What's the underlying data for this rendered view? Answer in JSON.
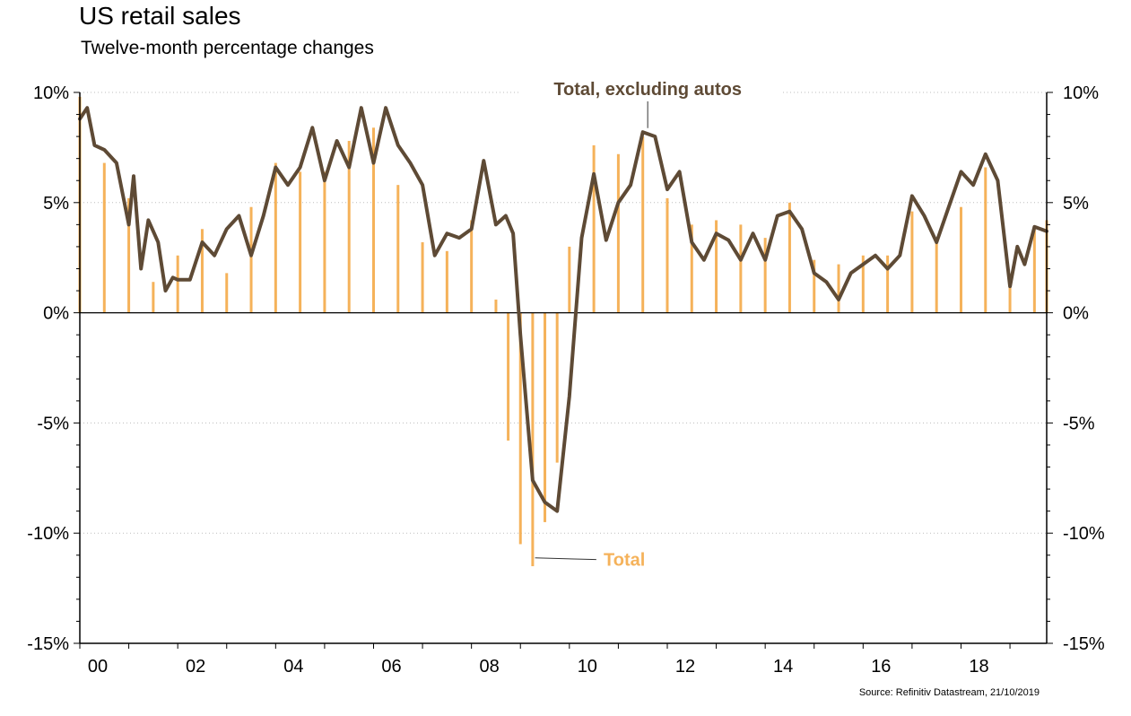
{
  "chart_data": {
    "type": "bar+line",
    "title": "US retail sales",
    "subtitle": "Twelve-month percentage changes",
    "source": "Source: Refinitiv Datastream, 21/10/2019",
    "x_tick_labels": [
      "00",
      "02",
      "04",
      "06",
      "08",
      "10",
      "12",
      "14",
      "16",
      "18"
    ],
    "x_tick_years": [
      2000,
      2002,
      2004,
      2006,
      2008,
      2010,
      2012,
      2014,
      2016,
      2018
    ],
    "xlim": [
      2000.0,
      2019.75
    ],
    "ylim": [
      -15,
      10
    ],
    "y_ticks": [
      10,
      5,
      0,
      -5,
      -10,
      -15
    ],
    "y_tick_labels": [
      "10%",
      "5%",
      "0%",
      "-5%",
      "-10%",
      "-15%"
    ],
    "grid": "horizontal dotted",
    "colors": {
      "total": "#F5B25A",
      "excl_autos": "#5E4A35",
      "grid": "#bdbdbd"
    },
    "series": [
      {
        "name": "Total",
        "render": "bars",
        "color": "#F5B25A",
        "x": [
          2000.0,
          2000.5,
          2001.0,
          2001.5,
          2002.0,
          2002.5,
          2003.0,
          2003.5,
          2004.0,
          2004.5,
          2005.0,
          2005.5,
          2006.0,
          2006.5,
          2007.0,
          2007.5,
          2008.0,
          2008.5,
          2008.75,
          2009.0,
          2009.25,
          2009.5,
          2009.75,
          2010.0,
          2010.5,
          2011.0,
          2011.5,
          2012.0,
          2012.5,
          2013.0,
          2013.5,
          2014.0,
          2014.5,
          2015.0,
          2015.5,
          2016.0,
          2016.5,
          2017.0,
          2017.5,
          2018.0,
          2018.5,
          2019.0,
          2019.5,
          2019.75
        ],
        "values": [
          9.8,
          6.8,
          5.2,
          1.4,
          2.6,
          3.8,
          1.8,
          4.8,
          6.8,
          6.4,
          6.4,
          7.8,
          8.4,
          5.8,
          3.2,
          2.8,
          4.2,
          0.6,
          -5.8,
          -10.5,
          -11.5,
          -9.5,
          -6.8,
          3.0,
          7.6,
          7.2,
          8.0,
          5.2,
          4.0,
          4.2,
          4.0,
          3.4,
          5.0,
          2.4,
          2.2,
          2.6,
          2.6,
          4.6,
          3.4,
          4.8,
          6.6,
          1.4,
          3.8,
          4.2
        ]
      },
      {
        "name": "Total, excluding autos",
        "render": "line",
        "color": "#5E4A35",
        "x": [
          2000.0,
          2000.15,
          2000.3,
          2000.5,
          2000.75,
          2001.0,
          2001.1,
          2001.25,
          2001.4,
          2001.6,
          2001.75,
          2001.9,
          2002.0,
          2002.25,
          2002.5,
          2002.75,
          2003.0,
          2003.25,
          2003.5,
          2003.75,
          2004.0,
          2004.25,
          2004.5,
          2004.75,
          2005.0,
          2005.25,
          2005.5,
          2005.75,
          2006.0,
          2006.25,
          2006.5,
          2006.75,
          2007.0,
          2007.25,
          2007.5,
          2007.75,
          2008.0,
          2008.25,
          2008.5,
          2008.7,
          2008.85,
          2009.0,
          2009.25,
          2009.5,
          2009.75,
          2010.0,
          2010.25,
          2010.5,
          2010.75,
          2011.0,
          2011.25,
          2011.5,
          2011.75,
          2012.0,
          2012.25,
          2012.5,
          2012.75,
          2013.0,
          2013.25,
          2013.5,
          2013.75,
          2014.0,
          2014.25,
          2014.5,
          2014.75,
          2015.0,
          2015.25,
          2015.5,
          2015.75,
          2016.0,
          2016.25,
          2016.5,
          2016.75,
          2017.0,
          2017.25,
          2017.5,
          2017.75,
          2018.0,
          2018.25,
          2018.5,
          2018.75,
          2019.0,
          2019.15,
          2019.3,
          2019.5,
          2019.75
        ],
        "values": [
          8.8,
          9.3,
          7.6,
          7.4,
          6.8,
          4.0,
          6.2,
          2.0,
          4.2,
          3.2,
          1.0,
          1.6,
          1.5,
          1.5,
          3.2,
          2.6,
          3.8,
          4.4,
          2.6,
          4.4,
          6.6,
          5.8,
          6.6,
          8.4,
          6.0,
          7.8,
          6.6,
          9.3,
          6.8,
          9.3,
          7.6,
          6.8,
          5.8,
          2.6,
          3.6,
          3.4,
          3.8,
          6.9,
          4.0,
          4.4,
          3.6,
          -1.0,
          -7.6,
          -8.6,
          -9.0,
          -3.8,
          3.4,
          6.3,
          3.3,
          5.0,
          5.8,
          8.2,
          8.0,
          5.6,
          6.4,
          3.2,
          2.4,
          3.6,
          3.3,
          2.4,
          3.6,
          2.4,
          4.4,
          4.6,
          3.8,
          1.8,
          1.4,
          0.6,
          1.8,
          2.2,
          2.6,
          2.0,
          2.6,
          5.3,
          4.4,
          3.2,
          4.8,
          6.4,
          5.8,
          7.2,
          6.0,
          1.2,
          3.0,
          2.2,
          3.9,
          3.7
        ]
      }
    ],
    "annotations": [
      {
        "text": "Total, excluding autos",
        "series": "Total, excluding autos",
        "at_x": 2011.6,
        "at_y": 8.3
      },
      {
        "text": "Total",
        "series": "Total",
        "at_x": 2009.3,
        "at_y": -11.0
      }
    ]
  }
}
